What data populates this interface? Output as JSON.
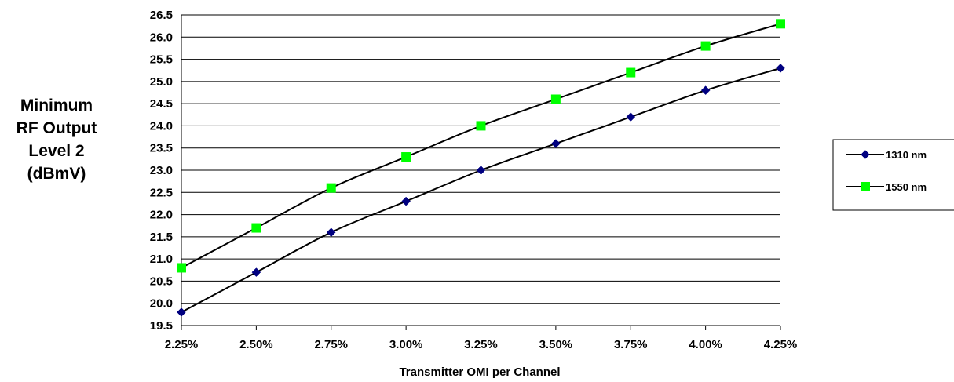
{
  "chart_data": {
    "type": "line",
    "title": "",
    "ylabel_lines": [
      "Minimum",
      "RF Output",
      "Level 2",
      "(dBmV)"
    ],
    "xlabel": "Transmitter OMI per Channel",
    "categories": [
      "2.25%",
      "2.50%",
      "2.75%",
      "3.00%",
      "3.25%",
      "3.50%",
      "3.75%",
      "4.00%",
      "4.25%"
    ],
    "x": [
      2.25,
      2.5,
      2.75,
      3.0,
      3.25,
      3.5,
      3.75,
      4.0,
      4.25
    ],
    "ylim": [
      19.5,
      26.5
    ],
    "yticks": [
      "19.5",
      "20.0",
      "20.5",
      "21.0",
      "21.5",
      "22.0",
      "22.5",
      "23.0",
      "23.5",
      "24.0",
      "24.5",
      "25.0",
      "25.5",
      "26.0",
      "26.5"
    ],
    "grid": true,
    "legend": "right",
    "series": [
      {
        "name": "1310 nm",
        "marker": "diamond",
        "color": "#000080",
        "values": [
          19.8,
          20.7,
          21.6,
          22.3,
          23.0,
          23.6,
          24.2,
          24.8,
          25.3
        ]
      },
      {
        "name": "1550 nm",
        "marker": "square",
        "color": "#00FF00",
        "values": [
          20.8,
          21.7,
          22.6,
          23.3,
          24.0,
          24.6,
          25.2,
          25.8,
          26.3
        ]
      }
    ]
  }
}
